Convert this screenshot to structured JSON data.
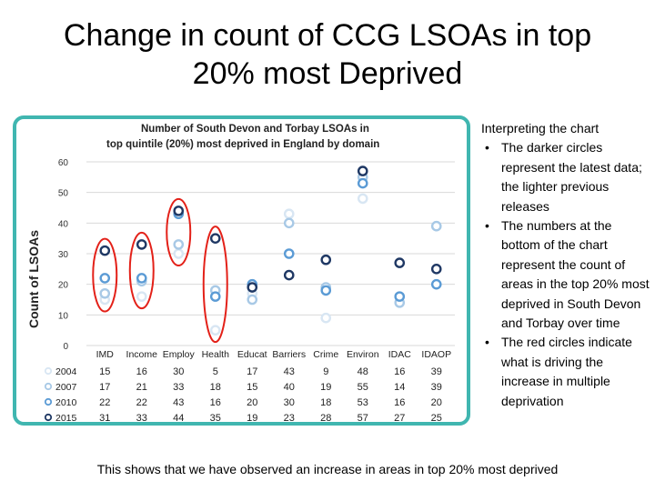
{
  "slide": {
    "title_line1": "Change in count of CCG LSOAs in top",
    "title_line2": "20% most Deprived",
    "footer": "This shows that we have observed an increase in areas in top 20% most deprived"
  },
  "notes": {
    "heading": "Interpreting the chart",
    "bullets": [
      "The darker circles represent the latest data; the lighter previous releases",
      "The numbers at the bottom of the chart represent the count of areas in the top 20% most deprived in South Devon and Torbay over time",
      "The red circles indicate what is driving the increase in multiple deprivation"
    ]
  },
  "chart_data": {
    "type": "scatter",
    "title_line1": "Number of South Devon and Torbay LSOAs in",
    "title_line2": "top quintile (20%) most deprived in England by domain",
    "ylabel": "Count of LSOAs",
    "xlabel": "",
    "ylim": [
      0,
      60
    ],
    "yticks": [
      0,
      10,
      20,
      30,
      40,
      50,
      60
    ],
    "grid": true,
    "categories": [
      "IMD",
      "Income",
      "Employ",
      "Health",
      "Educat",
      "Barriers",
      "Crime",
      "Environ",
      "IDAC",
      "IDAOP"
    ],
    "series": [
      {
        "name": "2004",
        "color": "#d8e6f3",
        "values": [
          15,
          16,
          30,
          5,
          17,
          43,
          9,
          48,
          16,
          39
        ]
      },
      {
        "name": "2007",
        "color": "#a8c9e6",
        "values": [
          17,
          21,
          33,
          18,
          15,
          40,
          19,
          55,
          14,
          39
        ]
      },
      {
        "name": "2010",
        "color": "#5b9bd5",
        "values": [
          22,
          22,
          43,
          16,
          20,
          30,
          18,
          53,
          16,
          20
        ]
      },
      {
        "name": "2015",
        "color": "#1f3864",
        "values": [
          31,
          33,
          44,
          35,
          19,
          23,
          28,
          57,
          27,
          25
        ]
      }
    ],
    "highlight_categories": [
      "IMD",
      "Income",
      "Employ",
      "Health"
    ],
    "highlight_color": "#e32119",
    "frame_color": "#40b6b0"
  }
}
